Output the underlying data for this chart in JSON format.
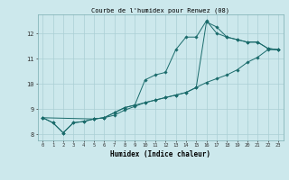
{
  "title": "Courbe de l'humidex pour Renwez (08)",
  "xlabel": "Humidex (Indice chaleur)",
  "bg_color": "#cce8ec",
  "line_color": "#1a6b6b",
  "grid_color": "#aacfd4",
  "xlim": [
    -0.5,
    23.5
  ],
  "ylim": [
    7.75,
    12.75
  ],
  "yticks": [
    8,
    9,
    10,
    11,
    12
  ],
  "xticks": [
    0,
    1,
    2,
    3,
    4,
    5,
    6,
    7,
    8,
    9,
    10,
    11,
    12,
    13,
    14,
    15,
    16,
    17,
    18,
    19,
    20,
    21,
    22,
    23
  ],
  "line1_x": [
    0,
    1,
    2,
    3,
    4,
    5,
    6,
    7,
    8,
    9,
    10,
    11,
    12,
    13,
    14,
    15,
    16,
    17,
    18,
    19,
    20,
    21,
    22,
    23
  ],
  "line1_y": [
    8.65,
    8.45,
    8.05,
    8.45,
    8.5,
    8.6,
    8.65,
    8.85,
    9.05,
    9.15,
    10.15,
    10.35,
    10.45,
    11.35,
    11.85,
    11.85,
    12.5,
    12.0,
    11.85,
    11.75,
    11.65,
    11.65,
    11.4,
    11.35
  ],
  "line2_x": [
    0,
    1,
    2,
    3,
    4,
    5,
    6,
    7,
    8,
    9,
    10,
    11,
    12,
    13,
    14,
    15,
    16,
    17,
    18,
    19,
    20,
    21,
    22,
    23
  ],
  "line2_y": [
    8.65,
    8.45,
    8.05,
    8.45,
    8.5,
    8.6,
    8.65,
    8.75,
    8.95,
    9.1,
    9.25,
    9.35,
    9.45,
    9.55,
    9.65,
    9.85,
    10.05,
    10.2,
    10.35,
    10.55,
    10.85,
    11.05,
    11.35,
    11.35
  ],
  "line3_x": [
    0,
    5,
    6,
    7,
    8,
    9,
    10,
    11,
    12,
    13,
    14,
    15,
    16,
    17,
    18,
    19,
    20,
    21,
    22,
    23
  ],
  "line3_y": [
    8.65,
    8.6,
    8.65,
    8.85,
    9.05,
    9.15,
    9.25,
    9.35,
    9.45,
    9.55,
    9.65,
    9.85,
    12.45,
    12.25,
    11.85,
    11.75,
    11.65,
    11.65,
    11.4,
    11.35
  ]
}
